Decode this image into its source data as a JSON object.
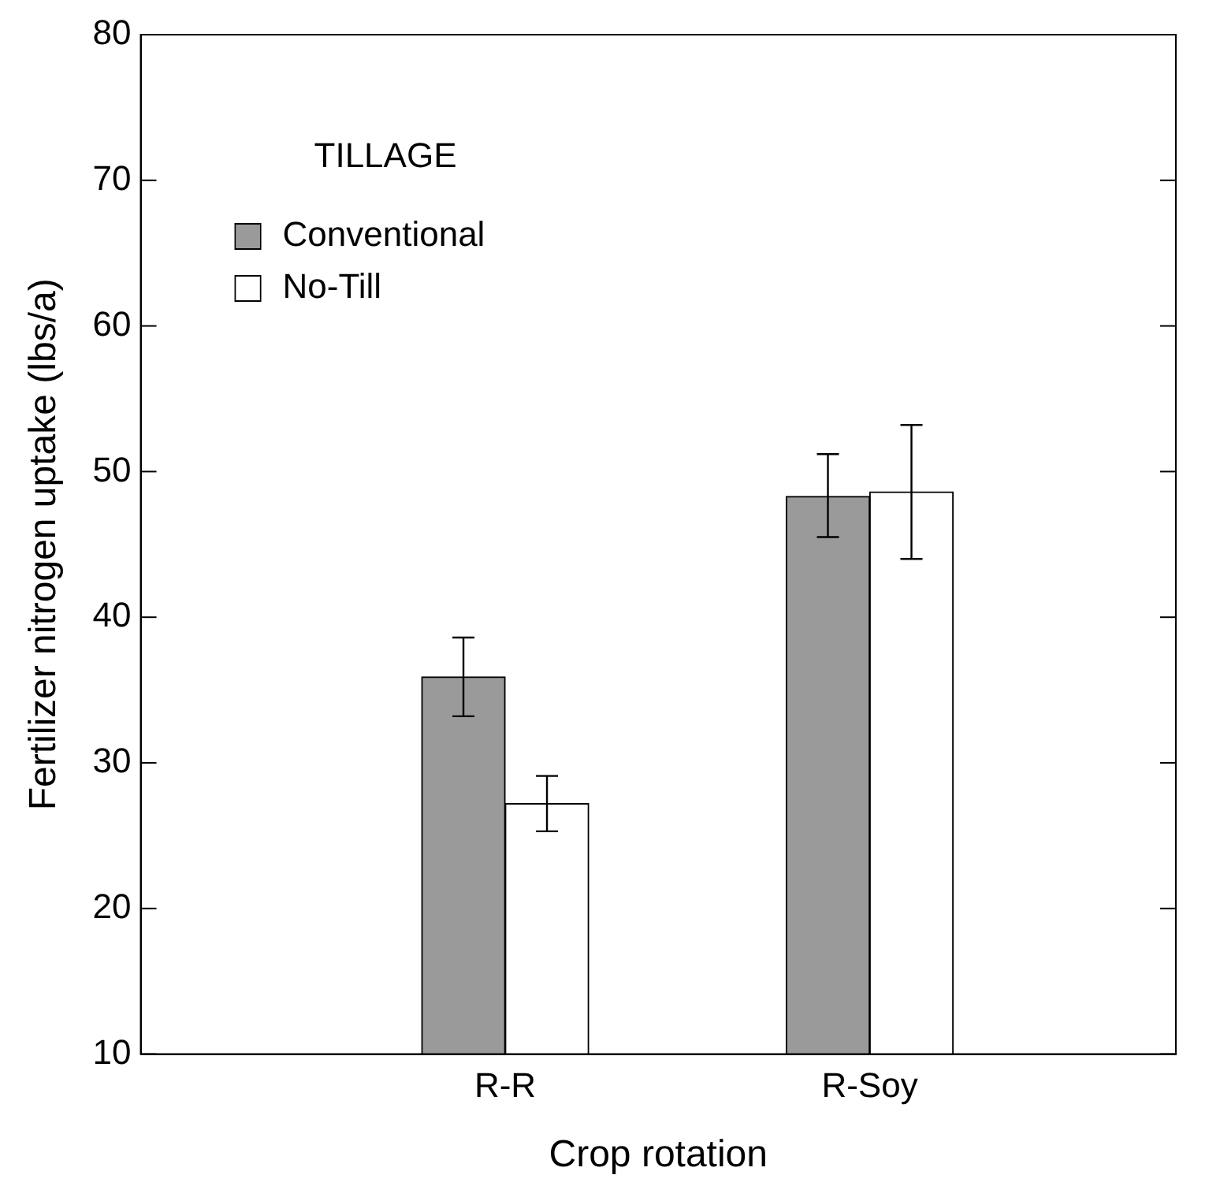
{
  "chart_data": {
    "type": "bar",
    "xlabel": "Crop rotation",
    "ylabel": "Fertilizer nitrogen uptake (lbs/a)",
    "legend_title": "TILLAGE",
    "legend": "top left",
    "grid": false,
    "categories": [
      "R-R",
      "R-Soy"
    ],
    "series": [
      {
        "name": "Conventional",
        "color": "#9a9a9a",
        "values": [
          35.9,
          48.3
        ],
        "errors": [
          [
            33.2,
            38.6
          ],
          [
            45.5,
            51.2
          ]
        ]
      },
      {
        "name": "No-Till",
        "color": "#ffffff",
        "values": [
          27.2,
          48.6
        ],
        "errors": [
          [
            25.3,
            29.1
          ],
          [
            44.0,
            53.2
          ]
        ]
      }
    ],
    "ylim": [
      10,
      80
    ],
    "yticks": [
      10,
      20,
      30,
      40,
      50,
      60,
      70,
      80
    ]
  }
}
